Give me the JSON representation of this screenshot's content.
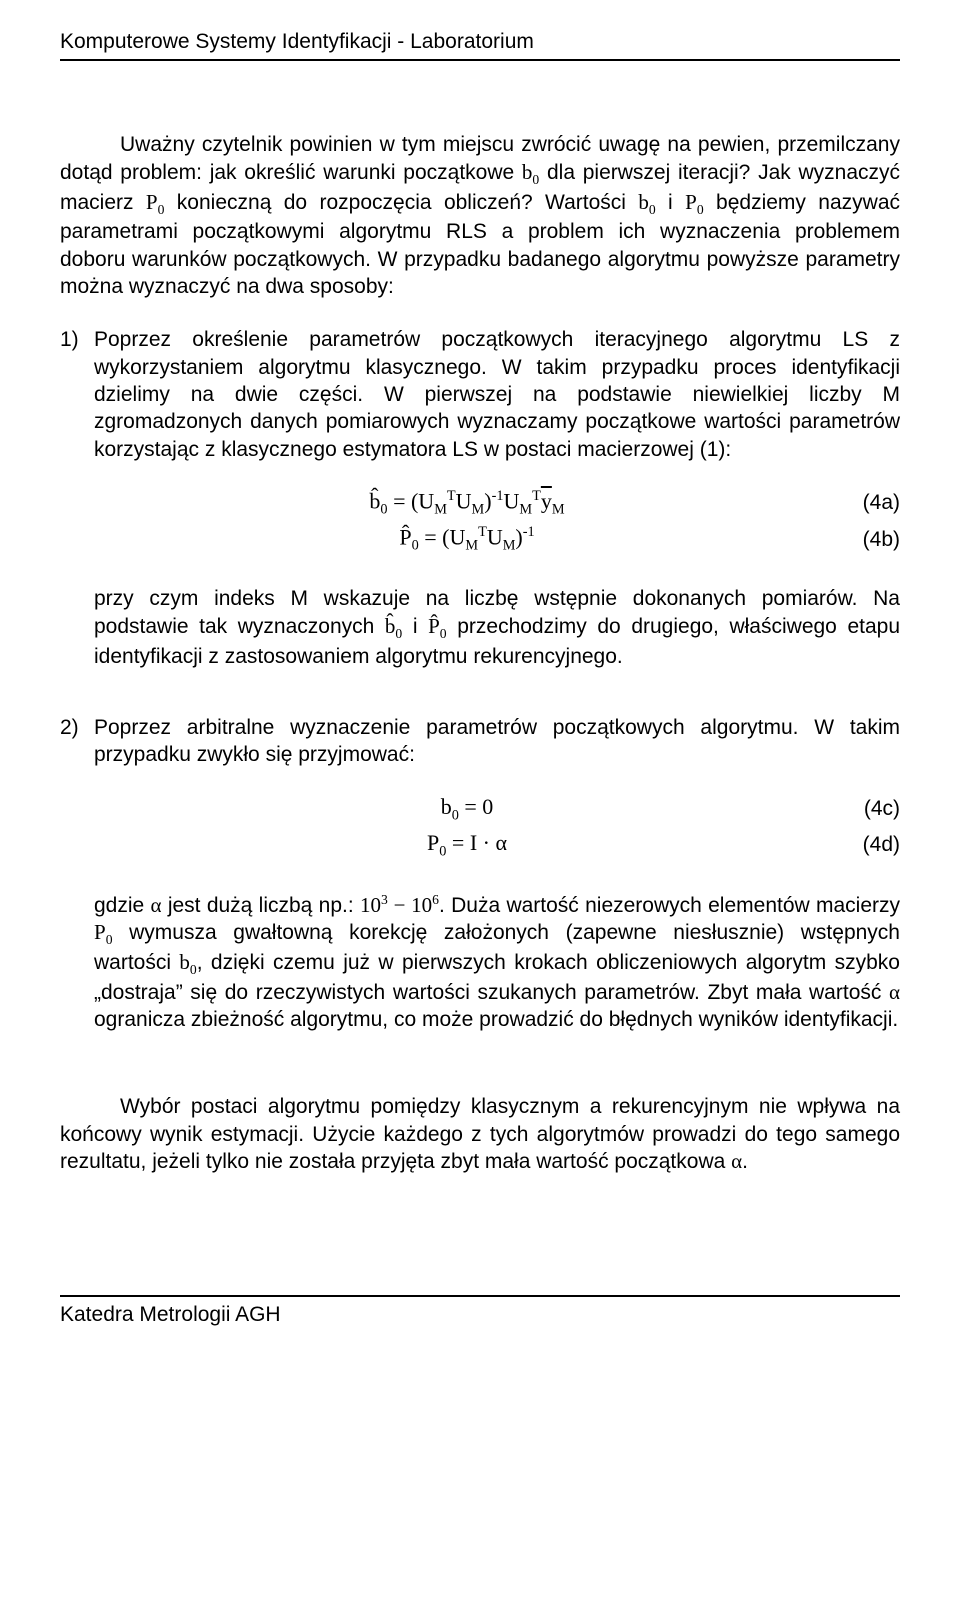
{
  "header": {
    "title": "Komputerowe Systemy Identyfikacji - Laboratorium"
  },
  "body": {
    "intro_html": "Uważny czytelnik powinien w tym miejscu zwrócić uwagę na pewien, przemilczany dotąd problem: jak określić warunki początkowe <span class='serif'>b<span class='sub'>0</span></span> dla pierwszej iteracji? Jak wyznaczyć macierz <span class='serif'>P<span class='sub'>0</span></span> konieczną do rozpoczęcia obliczeń? Wartości <span class='serif'>b<span class='sub'>0</span></span> i <span class='serif'>P<span class='sub'>0</span></span> będziemy nazywać parametrami początkowymi algorytmu RLS a problem ich wyznaczenia problemem doboru warunków początkowych. W przypadku badanego algorytmu powyższe parametry można wyznaczyć na dwa sposoby:",
    "item1": {
      "num": "1)",
      "text_html": "Poprzez określenie parametrów początkowych iteracyjnego algorytmu LS z wykorzystaniem algorytmu klasycznego. W takim przypadku proces identyfikacji dzielimy na dwie części. W pierwszej na podstawie niewielkiej liczby M zgromadzonych danych pomiarowych wyznaczamy początkowe wartości parametrów korzystając z klasycznego estymatora LS w postaci macierzowej (1):",
      "eq4a_html": "b&#770;<span class='sub'>0</span> = (U<span class='sub'>M</span><span class='sup'>T</span>U<span class='sub'>M</span>)<span class='sup'>-1</span>U<span class='sub'>M</span><span class='sup'>T</span><span style='text-decoration:overline;'>y</span><span class='sub'>M</span>",
      "eq4a_label": "(4a)",
      "eq4b_html": "P&#770;<span class='sub'>0</span> = (U<span class='sub'>M</span><span class='sup'>T</span>U<span class='sub'>M</span>)<span class='sup'>-1</span>",
      "eq4b_label": "(4b)",
      "followup_html": "przy czym indeks M wskazuje na liczbę wstępnie dokonanych pomiarów. Na podstawie tak wyznaczonych <span class='serif'>b&#770;<span class='sub'>0</span></span> i <span class='serif'>P&#770;<span class='sub'>0</span></span> przechodzimy do drugiego, właściwego etapu identyfikacji z zastosowaniem algorytmu rekurencyjnego."
    },
    "item2": {
      "num": "2)",
      "text_html": "Poprzez arbitralne wyznaczenie parametrów początkowych algorytmu. W takim przypadku zwykło się przyjmować:",
      "eq4c_html": "b<span class='sub'>0</span> = 0",
      "eq4c_label": "(4c)",
      "eq4d_html": "P<span class='sub'>0</span> = I &middot; &alpha;",
      "eq4d_label": "(4d)",
      "followup_html": "gdzie <span class='serif'>&alpha;</span> jest dużą liczbą np.: <span class='serif'>10<span class='sup'>3</span> &minus; 10<span class='sup'>6</span></span>. Duża wartość niezerowych elementów macierzy <span class='serif'>P<span class='sub'>0</span></span> wymusza gwałtowną korekcję założonych (zapewne niesłusznie) wstępnych wartości <span class='serif'>b<span class='sub'>0</span></span>, dzięki czemu już w pierwszych krokach obliczeniowych algorytm szybko „dostraja” się do rzeczywistych wartości szukanych parametrów. Zbyt mała wartość <span class='serif'>&alpha;</span> ogranicza zbieżność algorytmu, co może prowadzić do błędnych wyników identyfikacji."
    },
    "closing_html": "Wybór postaci algorytmu pomiędzy klasycznym a rekurencyjnym nie wpływa na końcowy wynik estymacji. Użycie każdego z tych algorytmów prowadzi do tego samego rezultatu, jeżeli tylko nie została przyjęta zbyt mała wartość początkowa <span class='serif'>&alpha;</span>."
  },
  "footer": {
    "text": "Katedra Metrologii AGH"
  }
}
